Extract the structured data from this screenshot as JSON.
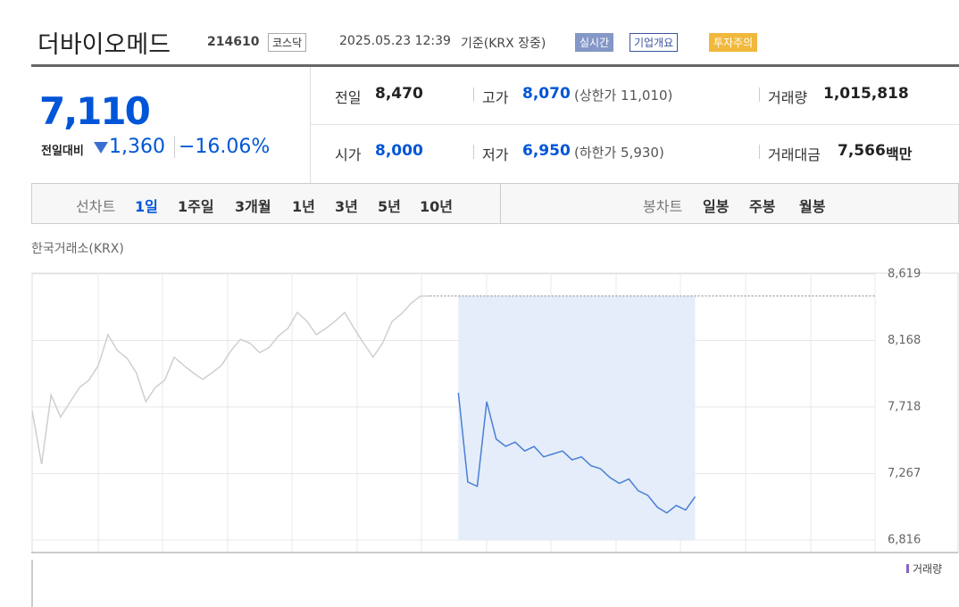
{
  "header": {
    "name": "더바이오메드",
    "code": "214610",
    "market": "코스닥",
    "datetime": "2025.05.23 12:39",
    "basis": "기준(KRX 장중)",
    "badges": [
      "실시간",
      "기업개요",
      "투자주의"
    ]
  },
  "price": {
    "current": "7,110",
    "change_label": "전일대비",
    "change": "1,360",
    "change_pct": "−16.06%"
  },
  "stats": [
    [
      {
        "label": "전일",
        "value": "8,470"
      },
      {
        "label": "고가",
        "value": "8,070",
        "note": "(상한가 11,010)"
      },
      {
        "label": "거래량",
        "value": "1,015,818"
      }
    ],
    [
      {
        "label": "시가",
        "value": "8,000"
      },
      {
        "label": "저가",
        "value": "6,950",
        "note": "(하한가 5,930)"
      },
      {
        "label": "거래대금",
        "value": "7,566",
        "unit": "백만"
      }
    ]
  ],
  "tabs": {
    "line_label": "선차트",
    "line": [
      "1일",
      "1주일",
      "3개월",
      "1년",
      "3년",
      "5년",
      "10년"
    ],
    "candle_label": "봉차트",
    "candle": [
      "일봉",
      "주봉",
      "월봉"
    ]
  },
  "chart_data": {
    "type": "line",
    "source": "한국거래소(KRX)",
    "volume_label": "거래량",
    "categories": [
      null,
      null,
      null,
      null,
      null,
      null,
      null,
      null,
      null,
      null,
      null,
      null,
      null,
      null,
      null,
      null,
      null,
      null,
      null,
      null,
      null,
      null,
      null,
      null,
      null,
      null,
      null,
      null,
      null,
      null,
      null,
      null,
      null,
      null,
      null,
      null,
      null,
      null,
      null,
      null,
      null,
      null,
      null,
      null,
      null,
      null,
      null,
      null,
      null,
      null,
      null,
      null,
      null,
      null,
      null,
      null,
      null,
      null,
      null,
      null,
      null,
      null,
      null,
      null,
      null,
      null,
      null,
      null,
      null,
      null,
      null,
      null,
      null,
      null,
      null,
      null,
      null,
      null,
      null,
      null,
      null,
      null,
      null,
      null,
      null,
      null,
      null,
      null,
      null,
      null
    ],
    "series": [
      {
        "color": "#cfcfcf",
        "values": [
          7693,
          7330,
          7800,
          7650,
          7750,
          7850,
          7900,
          8000,
          8208,
          8100,
          8050,
          7950,
          7754,
          7850,
          7900,
          8056,
          8000,
          7950,
          7905,
          7950,
          8000,
          8100,
          8177,
          8150,
          8087,
          8120,
          8200,
          8250,
          8359,
          8300,
          8208,
          8250,
          8300,
          8359,
          8250,
          8150,
          8056,
          8150,
          8298,
          8350,
          8420,
          8470,
          8470,
          null,
          null,
          null,
          null,
          null,
          null,
          null,
          null,
          null,
          null,
          null,
          null,
          null,
          null,
          null,
          null,
          null,
          null,
          null,
          null,
          null,
          null,
          null,
          null,
          null,
          null,
          null,
          null,
          null,
          null,
          null,
          null,
          null,
          null,
          null,
          null,
          null,
          null,
          null,
          null,
          null,
          null,
          null,
          null,
          null,
          null,
          null
        ]
      },
      {
        "color": "#4a7fd6",
        "values": [
          null,
          null,
          null,
          null,
          null,
          null,
          null,
          null,
          null,
          null,
          null,
          null,
          null,
          null,
          null,
          null,
          null,
          null,
          null,
          null,
          null,
          null,
          null,
          null,
          null,
          null,
          null,
          null,
          null,
          null,
          null,
          null,
          null,
          null,
          null,
          null,
          null,
          null,
          null,
          null,
          null,
          null,
          null,
          null,
          null,
          7814,
          7209,
          7180,
          7754,
          7500,
          7451,
          7480,
          7420,
          7450,
          7380,
          7400,
          7420,
          7360,
          7380,
          7320,
          7300,
          7240,
          7200,
          7230,
          7150,
          7120,
          7040,
          7000,
          7050,
          7020,
          7110,
          null,
          null,
          null,
          null,
          null,
          null,
          null,
          null,
          null,
          null,
          null,
          null,
          null,
          null,
          null,
          null,
          null,
          null,
          null
        ]
      }
    ],
    "prev_close": 8470,
    "ylim": [
      6816,
      8619
    ],
    "yticks": [
      {
        "value": 8619,
        "label": "8,619"
      },
      {
        "value": 8168,
        "label": "8,168"
      },
      {
        "value": 7718,
        "label": "7,718"
      },
      {
        "value": 7267,
        "label": "7,267"
      },
      {
        "value": 6816,
        "label": "6,816"
      }
    ],
    "grid": true
  }
}
